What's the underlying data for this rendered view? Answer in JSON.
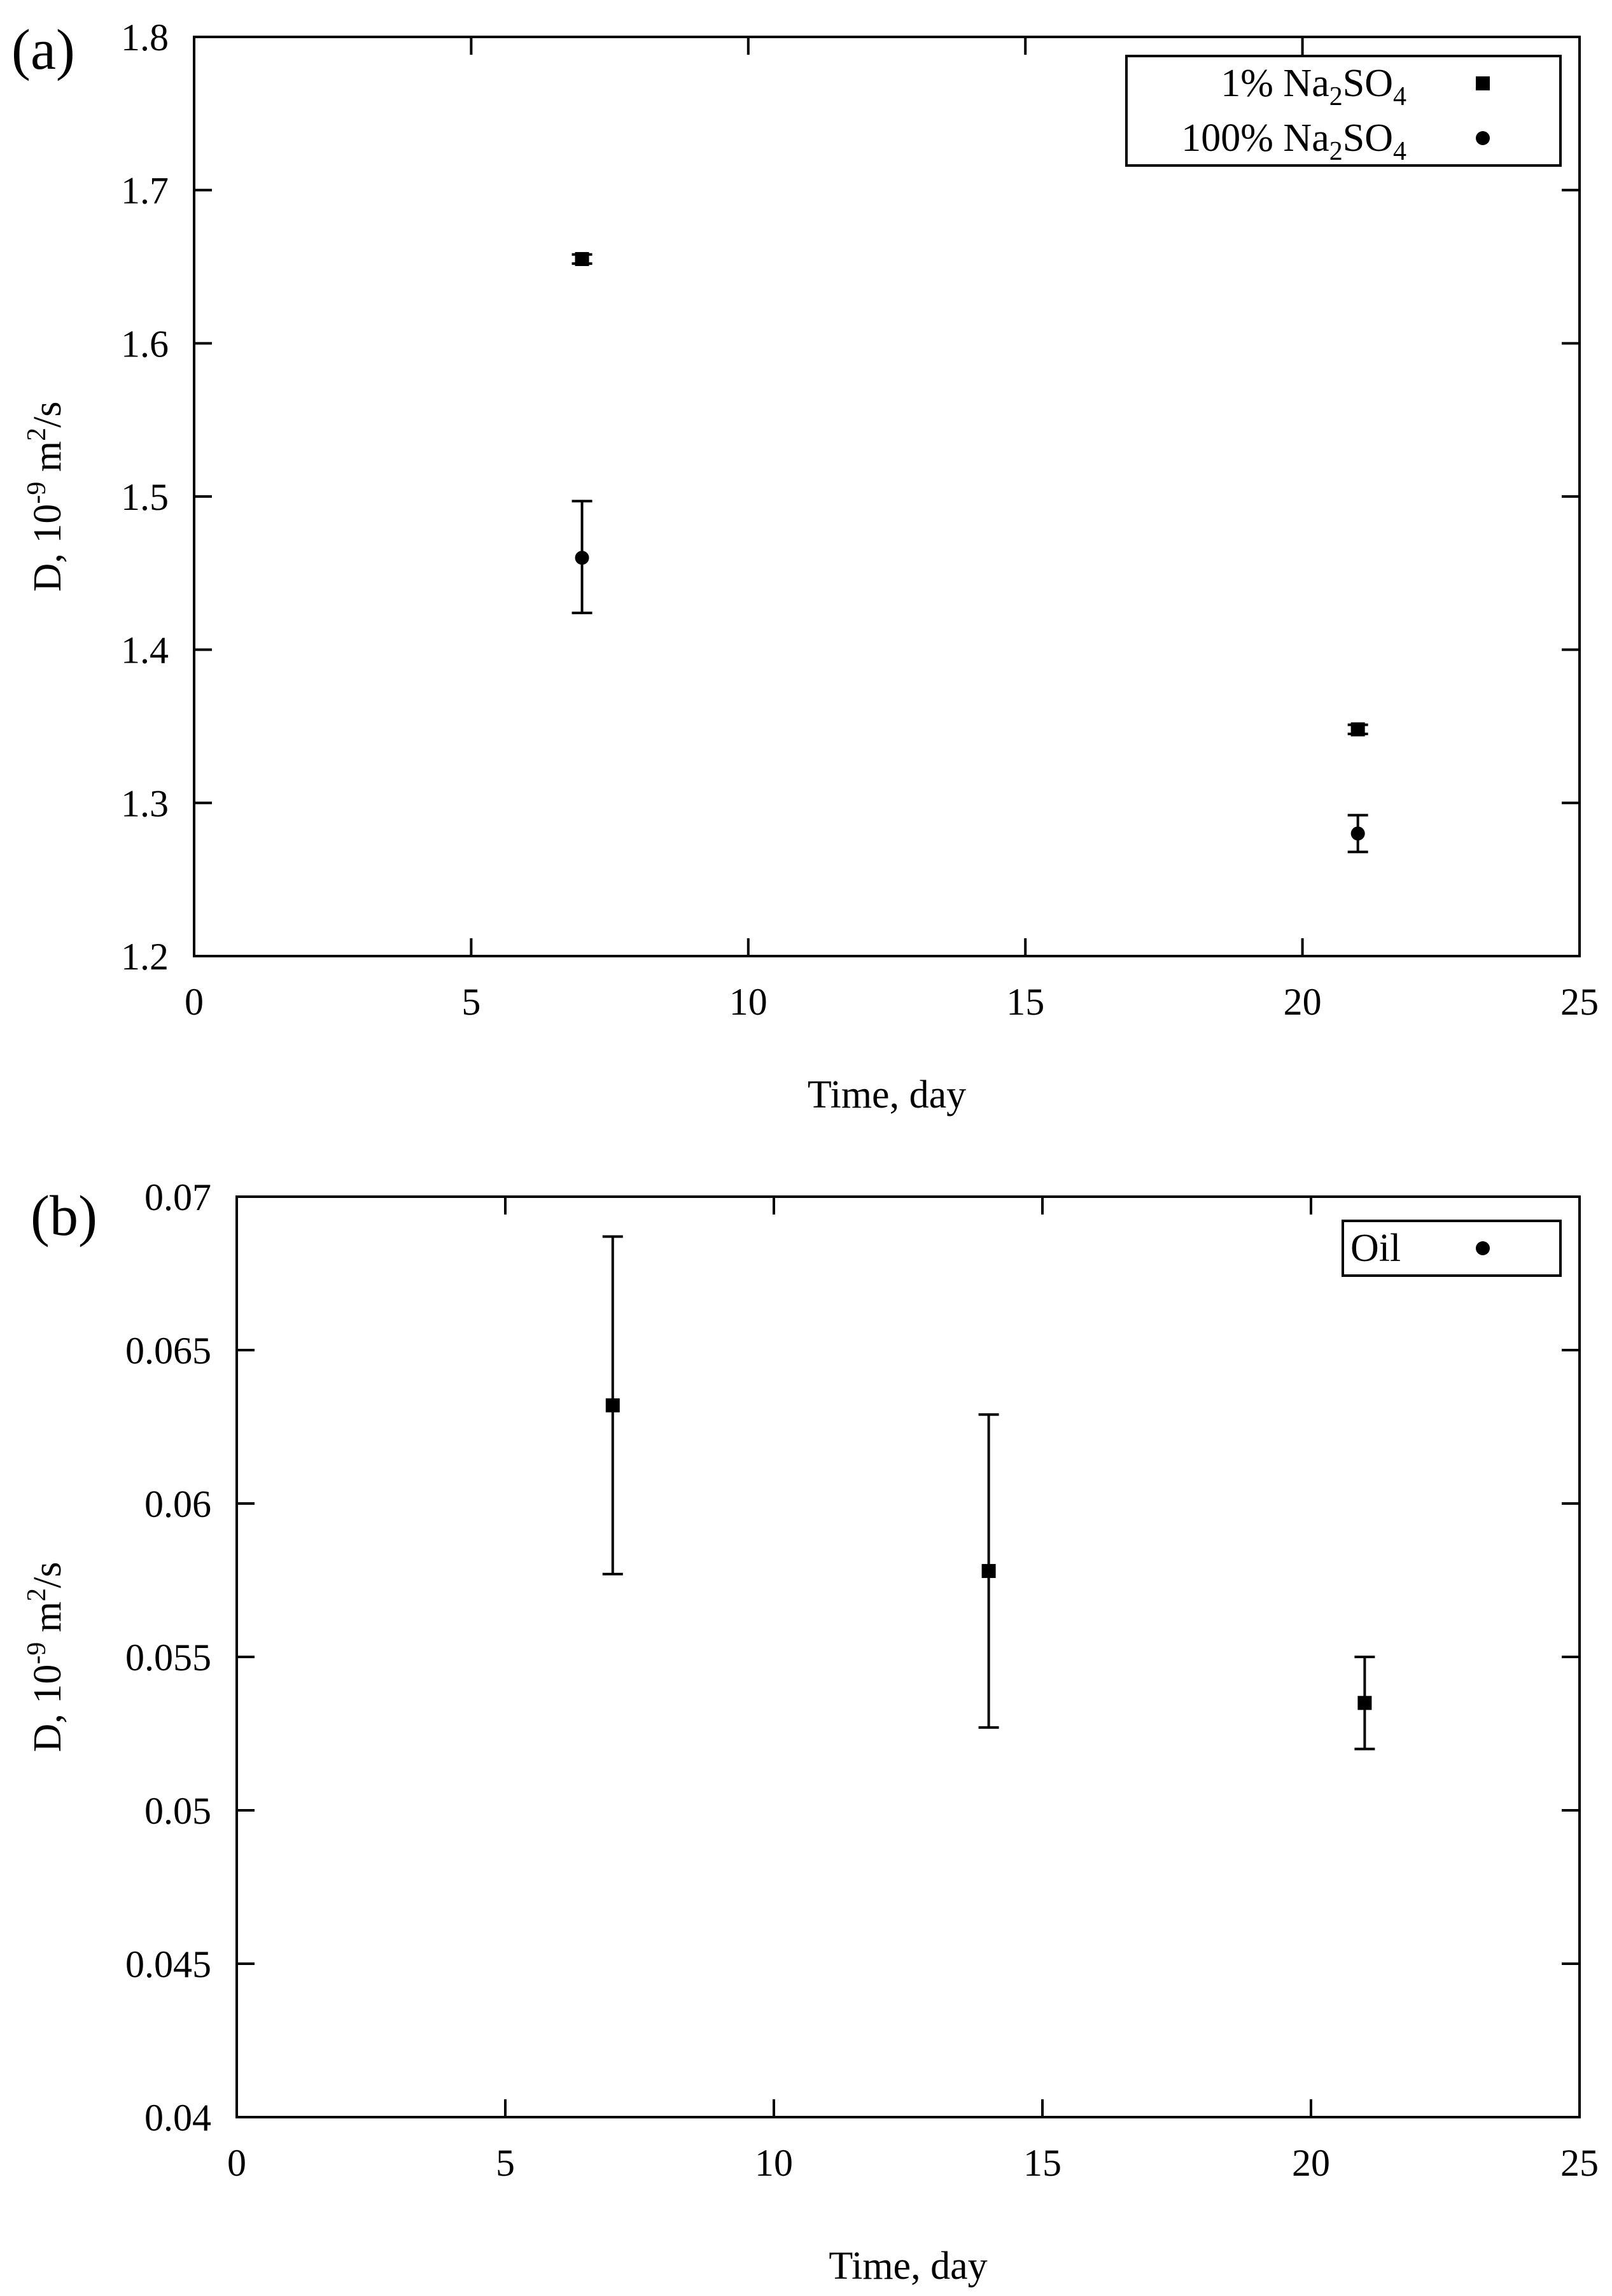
{
  "chart_data": [
    {
      "panel_label": "(a)",
      "type": "scatter",
      "xlabel": "Time, day",
      "ylabel_parts": [
        "D, 10",
        "-9",
        " m",
        "2",
        "/s"
      ],
      "xlim": [
        0,
        25
      ],
      "ylim": [
        1.2,
        1.8
      ],
      "xticks": [
        "0",
        "5",
        "10",
        "15",
        "20",
        "25"
      ],
      "xtick_values": [
        0,
        5,
        10,
        15,
        20,
        25
      ],
      "yticks": [
        "1.2",
        "1.3",
        "1.4",
        "1.5",
        "1.6",
        "1.7",
        "1.8"
      ],
      "ytick_values": [
        1.2,
        1.3,
        1.4,
        1.5,
        1.6,
        1.7,
        1.8
      ],
      "grid": false,
      "legend_position": "top-right",
      "series": [
        {
          "name": "1% Na2SO4",
          "legend_parts": [
            [
              "1% Na",
              false
            ],
            [
              "2",
              true
            ],
            [
              "SO",
              false
            ],
            [
              "4",
              true
            ]
          ],
          "marker": "square",
          "points": [
            {
              "x": 7,
              "y": 1.655,
              "err_low": 1.652,
              "err_high": 1.658
            },
            {
              "x": 21,
              "y": 1.348,
              "err_low": 1.345,
              "err_high": 1.351
            }
          ]
        },
        {
          "name": "100% Na2SO4",
          "legend_parts": [
            [
              "100% Na",
              false
            ],
            [
              "2",
              true
            ],
            [
              "SO",
              false
            ],
            [
              "4",
              true
            ]
          ],
          "marker": "circle",
          "points": [
            {
              "x": 7,
              "y": 1.46,
              "err_low": 1.424,
              "err_high": 1.497
            },
            {
              "x": 21,
              "y": 1.28,
              "err_low": 1.268,
              "err_high": 1.292
            }
          ]
        }
      ]
    },
    {
      "panel_label": "(b)",
      "type": "scatter",
      "xlabel": "Time, day",
      "ylabel_parts": [
        "D, 10",
        "-9",
        " m",
        "2",
        "/s"
      ],
      "xlim": [
        0,
        25
      ],
      "ylim": [
        0.04,
        0.07
      ],
      "xticks": [
        "0",
        "5",
        "10",
        "15",
        "20",
        "25"
      ],
      "xtick_values": [
        0,
        5,
        10,
        15,
        20,
        25
      ],
      "yticks": [
        "0.04",
        "0.045",
        "0.05",
        "0.055",
        "0.06",
        "0.065",
        "0.07"
      ],
      "ytick_values": [
        0.04,
        0.045,
        0.05,
        0.055,
        0.06,
        0.065,
        0.07
      ],
      "grid": false,
      "legend_position": "top-right",
      "legend_marker": "circle",
      "series": [
        {
          "name": "Oil",
          "legend_parts": [
            [
              "Oil",
              false
            ]
          ],
          "marker": "square",
          "points": [
            {
              "x": 7,
              "y": 0.0632,
              "err_low": 0.0577,
              "err_high": 0.0687
            },
            {
              "x": 14,
              "y": 0.0578,
              "err_low": 0.0527,
              "err_high": 0.0629
            },
            {
              "x": 21,
              "y": 0.0535,
              "err_low": 0.052,
              "err_high": 0.055
            }
          ]
        }
      ]
    }
  ]
}
